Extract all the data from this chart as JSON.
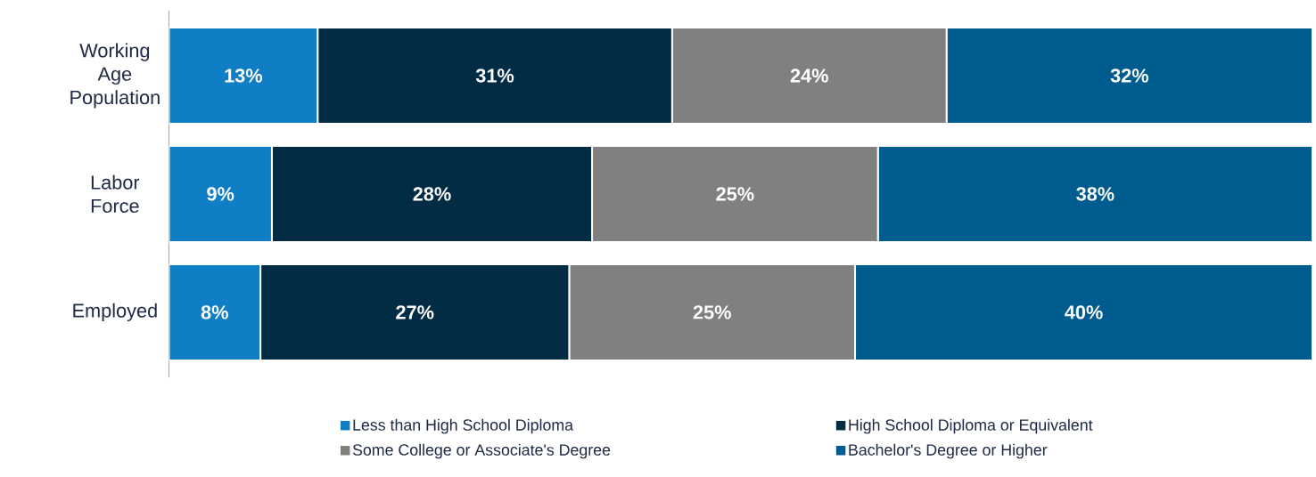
{
  "chart_data": {
    "type": "bar",
    "orientation": "horizontal",
    "stacked": true,
    "categories": [
      "Working Age Population",
      "Labor Force",
      "Employed"
    ],
    "series": [
      {
        "name": "Less than High School Diploma",
        "color": "#0f7ec4",
        "values": [
          13,
          9,
          8
        ],
        "value_labels": [
          "13%",
          "9%",
          "8%"
        ]
      },
      {
        "name": "High School Diploma or Equivalent",
        "color": "#022b44",
        "values": [
          31,
          28,
          27
        ],
        "value_labels": [
          "31%",
          "28%",
          "27%"
        ]
      },
      {
        "name": "Some College or Associate's Degree",
        "color": "#808080",
        "values": [
          24,
          25,
          25
        ],
        "value_labels": [
          "24%",
          "25%",
          "25%"
        ]
      },
      {
        "name": "Bachelor's Degree or Higher",
        "color": "#005b8e",
        "values": [
          32,
          38,
          40
        ],
        "value_labels": [
          "32%",
          "38%",
          "40%"
        ]
      }
    ],
    "xlim": [
      0,
      100
    ],
    "tick_labels": "y",
    "legend": "bottom"
  }
}
